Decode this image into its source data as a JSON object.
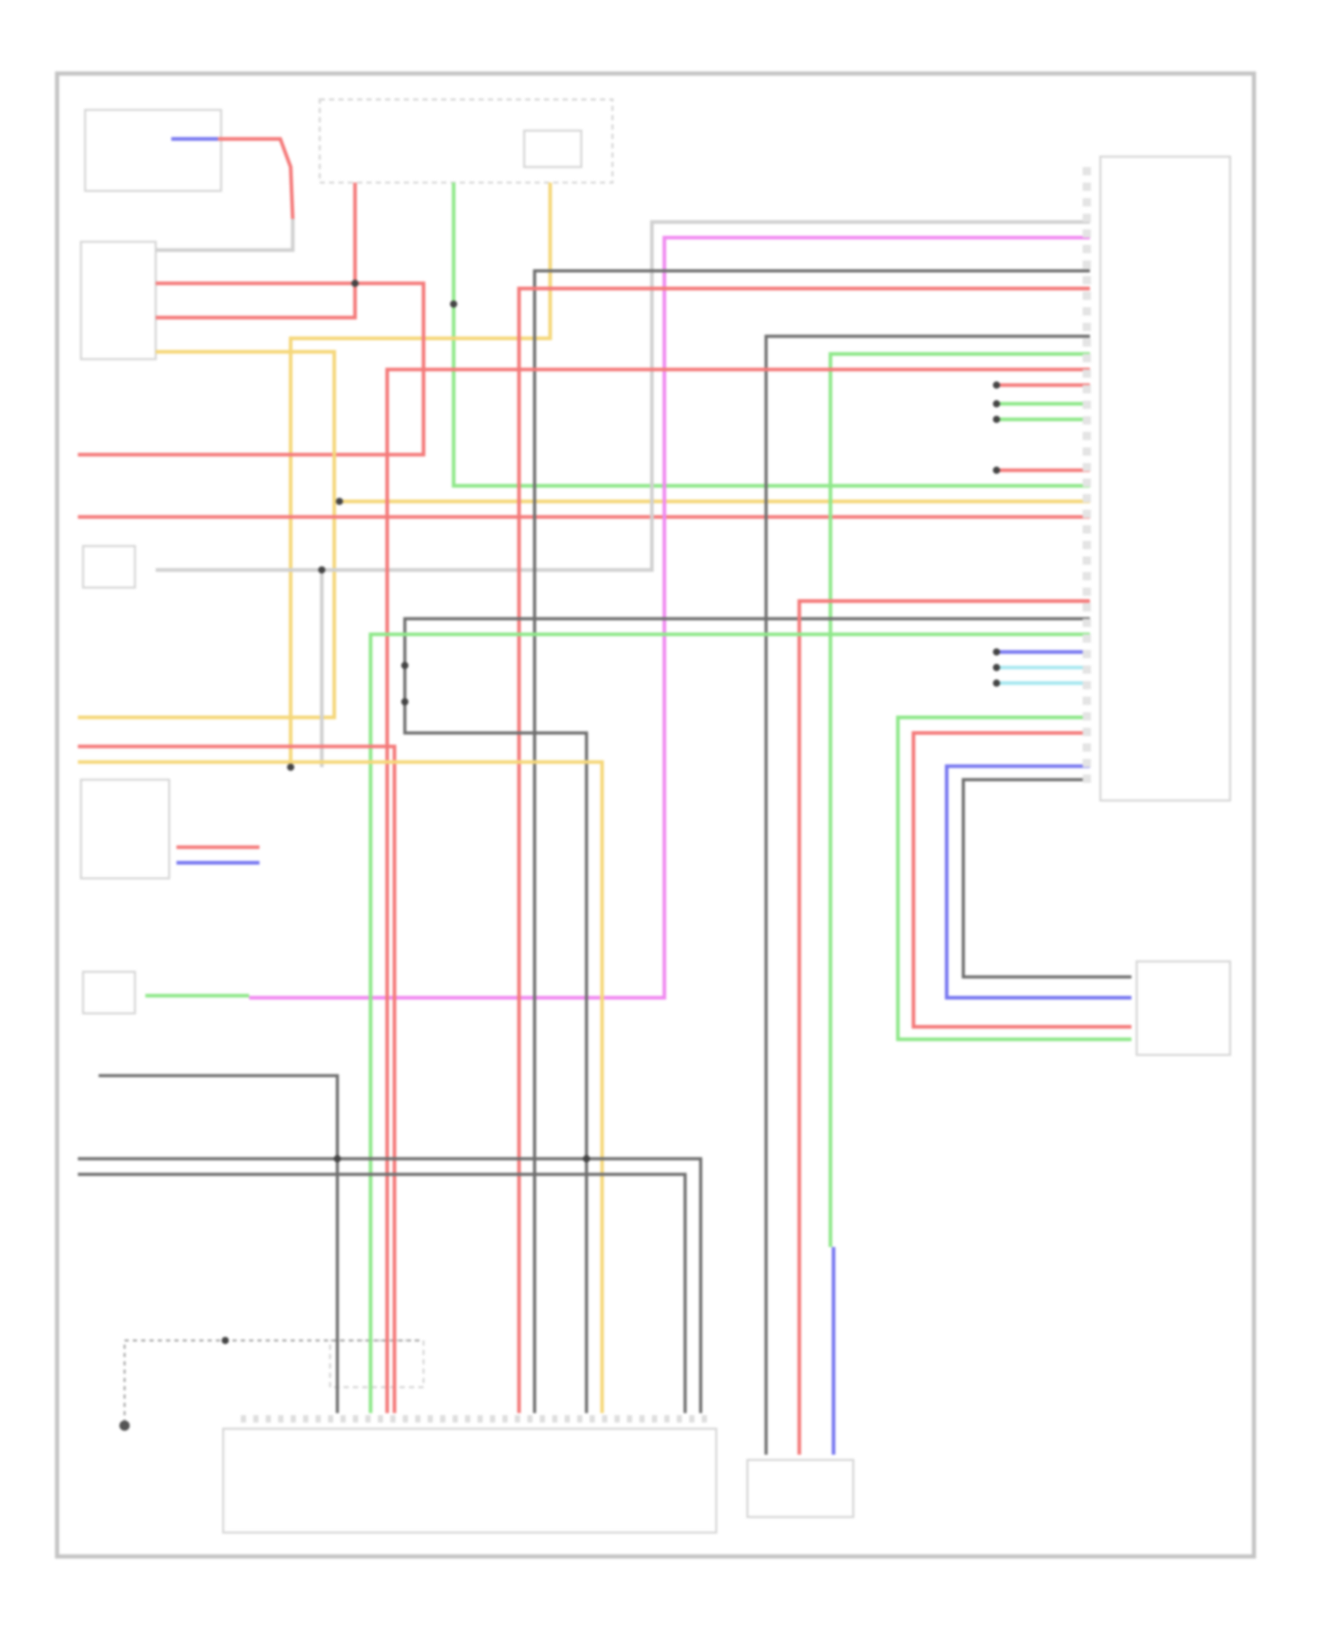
{
  "diagram": {
    "wire_colors": {
      "red": "#f47a7a",
      "green": "#8fe88a",
      "yellow": "#f5d77a",
      "pink": "#f08af0",
      "blue": "#7878f0",
      "cyan": "#a8e8f0",
      "dark_gray": "#6e6e6e",
      "light_gray": "#d0d0d0"
    },
    "frame_color": "#c4c4c4",
    "component_color": "#d6d6d6"
  }
}
